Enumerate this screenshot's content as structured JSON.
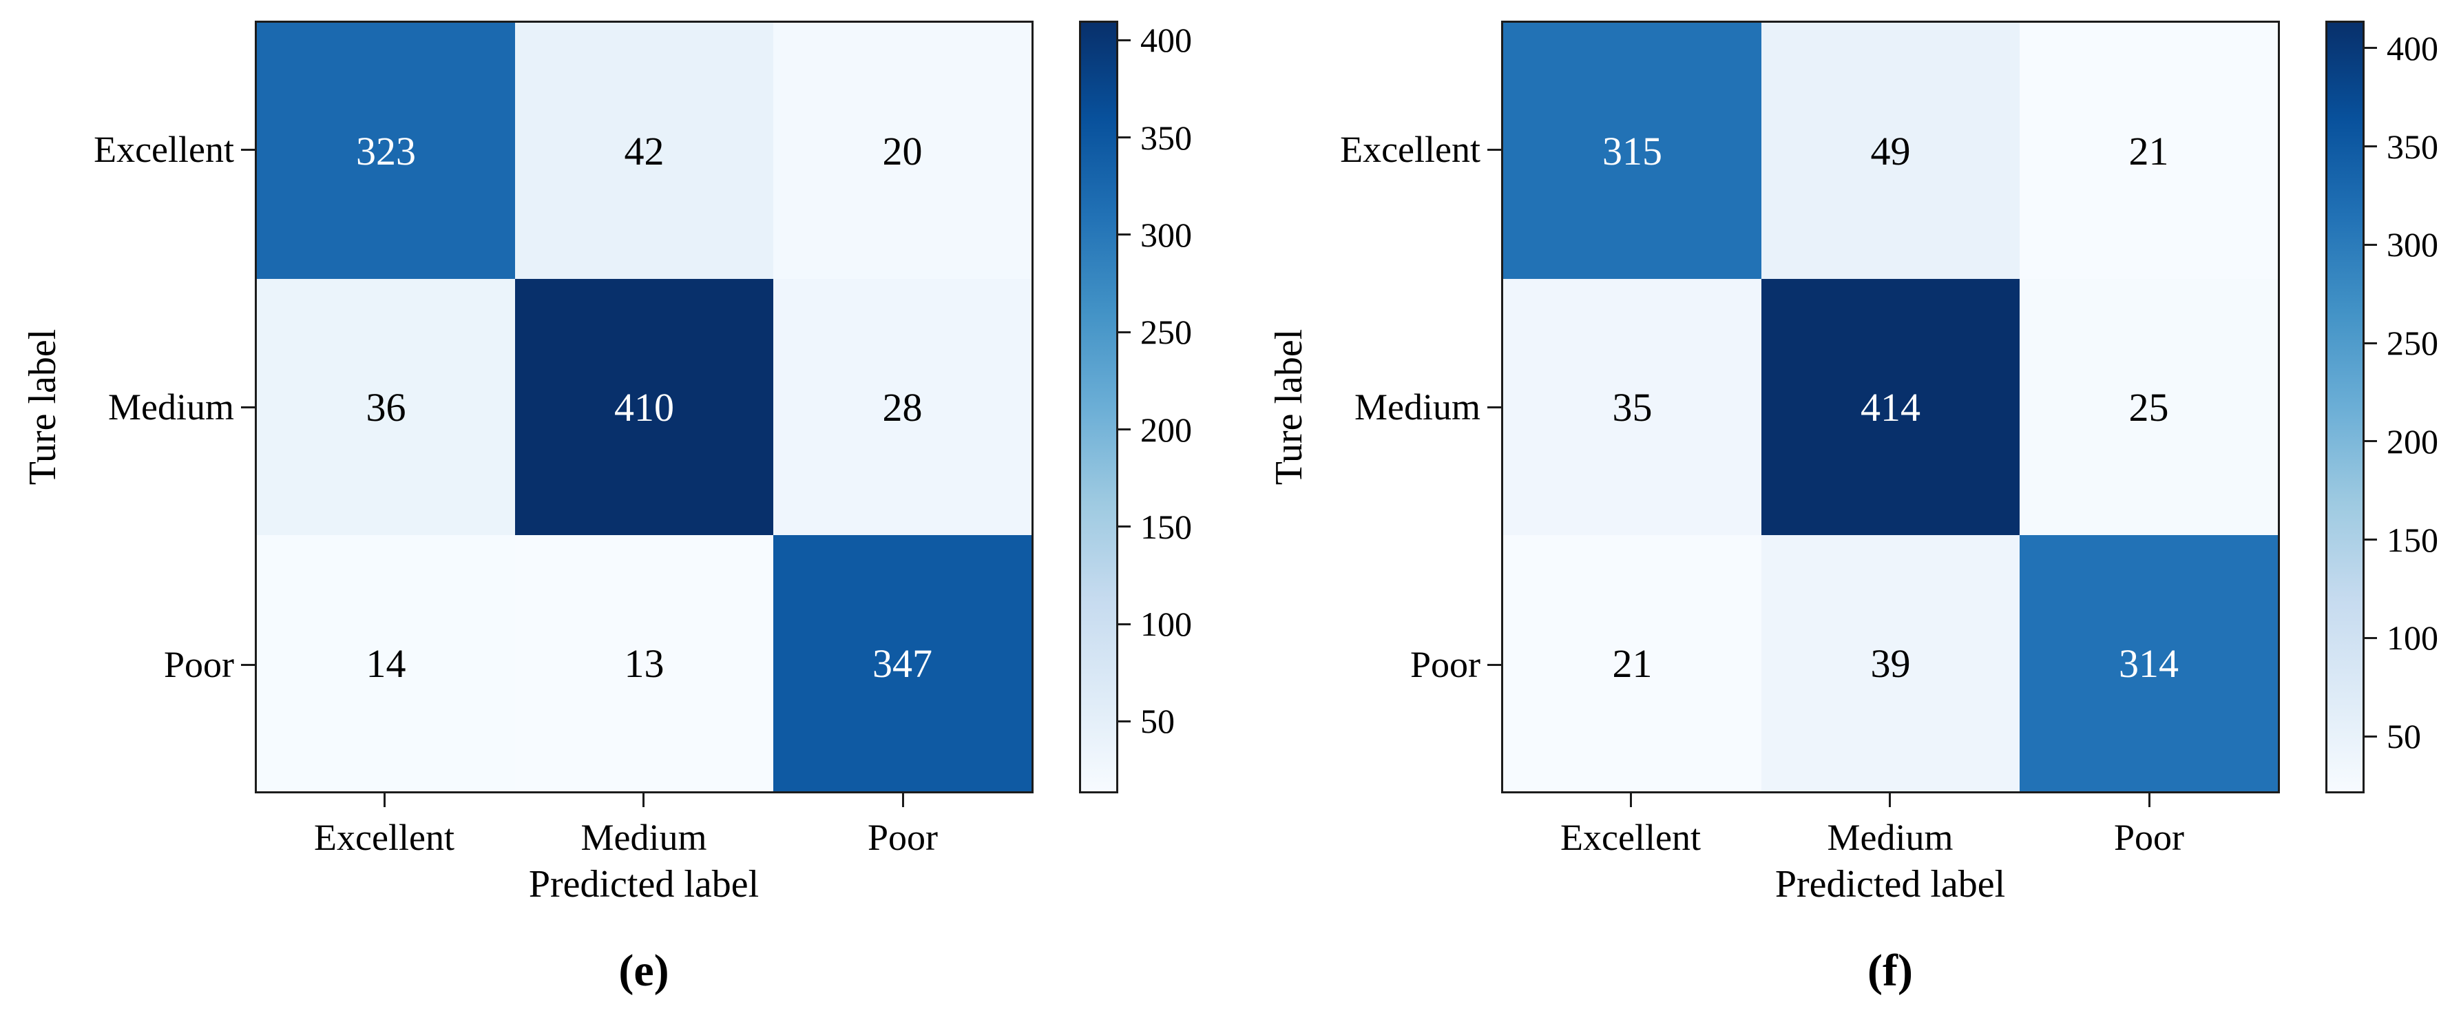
{
  "page": {
    "background": "#ffffff"
  },
  "chart_data": [
    {
      "type": "heatmap",
      "panel_caption": "(e)",
      "xlabel": "Predicted label",
      "ylabel": "Ture label",
      "x_categories": [
        "Excellent",
        "Medium",
        "Poor"
      ],
      "y_categories": [
        "Excellent",
        "Medium",
        "Poor"
      ],
      "matrix": [
        [
          323,
          42,
          20
        ],
        [
          36,
          410,
          28
        ],
        [
          14,
          13,
          347
        ]
      ],
      "vmin": 13,
      "vmax": 410,
      "colorbar_ticks": [
        50,
        100,
        150,
        200,
        250,
        300,
        350,
        400
      ],
      "colormap": "Blues",
      "legend_position": "right-colorbar",
      "grid": false
    },
    {
      "type": "heatmap",
      "panel_caption": "(f)",
      "xlabel": "Predicted label",
      "ylabel": "Ture label",
      "x_categories": [
        "Excellent",
        "Medium",
        "Poor"
      ],
      "y_categories": [
        "Excellent",
        "Medium",
        "Poor"
      ],
      "matrix": [
        [
          315,
          49,
          21
        ],
        [
          35,
          414,
          25
        ],
        [
          21,
          39,
          314
        ]
      ],
      "vmin": 21,
      "vmax": 414,
      "colorbar_ticks": [
        50,
        100,
        150,
        200,
        250,
        300,
        350,
        400
      ],
      "colormap": "Blues",
      "legend_position": "right-colorbar",
      "grid": false
    }
  ],
  "colors": {
    "blues_stops": [
      "#f7fbff",
      "#deebf7",
      "#c6dbef",
      "#9ecae1",
      "#6baed6",
      "#4292c6",
      "#2171b5",
      "#08519c",
      "#08306b"
    ],
    "cell_text_light": "#ffffff",
    "cell_text_dark": "#000000",
    "spine": "#1c1c1c"
  }
}
